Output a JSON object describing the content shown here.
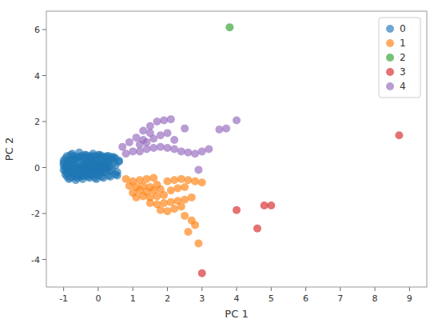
{
  "chart_data": {
    "type": "scatter",
    "xlabel": "PC 1",
    "ylabel": "PC 2",
    "xlim": [
      -1.5,
      9.5
    ],
    "ylim": [
      -5.2,
      6.8
    ],
    "xticks": [
      -1,
      0,
      1,
      2,
      3,
      4,
      5,
      6,
      7,
      8,
      9
    ],
    "yticks": [
      -4,
      -2,
      0,
      2,
      4,
      6
    ],
    "grid": false,
    "legend": "upper right",
    "series": [
      {
        "name": "0",
        "color": "#1f77b4",
        "x": [
          -0.95,
          -0.9,
          -0.85,
          -0.8,
          -0.75,
          -0.7,
          -0.7,
          -0.65,
          -0.6,
          -0.6,
          -0.55,
          -0.5,
          -0.5,
          -0.45,
          -0.4,
          -0.4,
          -0.35,
          -0.35,
          -0.3,
          -0.3,
          -0.25,
          -0.25,
          -0.2,
          -0.2,
          -0.15,
          -0.15,
          -0.1,
          -0.1,
          -0.05,
          -0.05,
          0.0,
          0.0,
          0.0,
          0.05,
          0.05,
          0.1,
          0.1,
          0.15,
          0.15,
          0.2,
          0.2,
          0.25,
          0.25,
          0.3,
          0.3,
          -0.8,
          -0.7,
          -0.6,
          -0.5,
          -0.4,
          -0.3,
          -0.2,
          -0.1,
          0.0,
          0.1,
          -0.85,
          -0.75,
          -0.65,
          -0.55,
          -0.45,
          -0.35,
          -0.25,
          -0.15,
          -0.05,
          0.05,
          -0.9,
          -0.8,
          -0.7,
          -0.6,
          -0.5,
          -0.4,
          -0.3,
          -0.2,
          -0.1,
          0.0,
          -0.9,
          -0.8,
          -0.7,
          -0.6,
          -0.5,
          -0.4,
          -0.3,
          -0.2,
          -0.1,
          0.0,
          0.1,
          0.2,
          0.3,
          0.4,
          0.5,
          -1.0,
          -1.0,
          -1.0,
          -0.95,
          -0.95,
          -0.85,
          -0.75,
          -0.65,
          -0.55,
          -0.45,
          -0.35,
          -0.25,
          -0.15,
          -0.05,
          0.05,
          0.15,
          0.25,
          0.35,
          0.45,
          0.55,
          0.6,
          0.5,
          0.4,
          0.3,
          0.2,
          0.15,
          0.05,
          -0.05,
          -0.15,
          -0.25,
          -0.35,
          -0.45,
          -0.55,
          -0.65,
          -0.75,
          -0.85,
          -0.95,
          -1.0,
          -0.9,
          -0.8,
          -0.7,
          -0.6,
          -0.5,
          -0.4,
          -0.3,
          -0.2,
          -0.1,
          0.0,
          0.1,
          0.2,
          0.3,
          0.4,
          0.5,
          0.6,
          0.55,
          0.45,
          0.35,
          0.25,
          0.15
        ],
        "values": [
          0.0,
          0.05,
          -0.05,
          0.1,
          0.0,
          -0.1,
          0.15,
          0.05,
          -0.1,
          0.1,
          0.0,
          -0.05,
          0.05,
          0.15,
          -0.05,
          0.1,
          -0.15,
          0.1,
          0.0,
          0.2,
          -0.05,
          0.1,
          -0.05,
          0.15,
          0.0,
          0.2,
          -0.1,
          0.1,
          0.0,
          0.15,
          -0.05,
          0.05,
          0.1,
          -0.05,
          0.1,
          0.0,
          0.15,
          -0.05,
          0.1,
          0.0,
          0.1,
          -0.05,
          0.1,
          0.0,
          0.15,
          -0.2,
          -0.25,
          -0.3,
          -0.25,
          -0.2,
          -0.15,
          -0.1,
          -0.15,
          -0.2,
          -0.15,
          0.3,
          0.35,
          0.4,
          0.45,
          0.4,
          0.35,
          0.3,
          0.25,
          0.3,
          0.35,
          -0.4,
          -0.45,
          -0.4,
          -0.45,
          -0.4,
          -0.35,
          -0.3,
          -0.35,
          -0.3,
          -0.35,
          0.5,
          0.55,
          0.5,
          0.45,
          0.5,
          0.55,
          0.5,
          0.45,
          0.5,
          0.55,
          0.5,
          0.45,
          0.5,
          0.45,
          0.4,
          0.1,
          -0.1,
          0.3,
          -0.3,
          0.4,
          -0.5,
          0.6,
          -0.55,
          0.65,
          -0.5,
          0.55,
          -0.45,
          0.6,
          -0.5,
          0.55,
          -0.45,
          0.5,
          -0.4,
          0.45,
          -0.35,
          0.3,
          0.1,
          -0.1,
          0.25,
          -0.2,
          0.3,
          -0.25,
          0.35,
          -0.3,
          0.4,
          -0.35,
          0.3,
          -0.3,
          0.35,
          -0.2,
          0.25,
          -0.15,
          0.2,
          -0.25,
          0.3,
          -0.3,
          0.4,
          -0.35,
          0.45,
          -0.4,
          0.5,
          -0.45,
          0.45,
          -0.4,
          0.4,
          -0.35,
          0.35,
          -0.3,
          0.25,
          -0.2,
          0.2,
          -0.15,
          0.25,
          -0.2
        ]
      },
      {
        "name": "1",
        "color": "#ff7f0e",
        "x": [
          0.8,
          1.0,
          1.2,
          1.4,
          1.6,
          0.9,
          1.1,
          1.3,
          1.5,
          1.7,
          1.0,
          1.2,
          1.4,
          1.6,
          1.8,
          1.1,
          1.3,
          1.5,
          1.7,
          1.9,
          2.1,
          2.3,
          2.5,
          2.0,
          2.2,
          2.4,
          2.6,
          2.8,
          3.0,
          1.5,
          1.7,
          1.9,
          2.1,
          2.3,
          2.5,
          2.7,
          1.8,
          2.0,
          2.2,
          2.4,
          2.5,
          2.7,
          2.8,
          2.6,
          2.9
        ],
        "values": [
          -0.5,
          -0.6,
          -0.55,
          -0.5,
          -0.45,
          -0.8,
          -0.85,
          -0.8,
          -0.85,
          -0.75,
          -1.1,
          -1.0,
          -1.05,
          -1.0,
          -0.95,
          -1.3,
          -1.25,
          -1.3,
          -1.25,
          -1.2,
          -1.0,
          -0.9,
          -0.85,
          -0.6,
          -0.55,
          -0.5,
          -0.55,
          -0.6,
          -0.65,
          -1.55,
          -1.6,
          -1.55,
          -1.5,
          -1.45,
          -1.4,
          -1.3,
          -1.85,
          -1.9,
          -1.8,
          -1.7,
          -2.1,
          -2.3,
          -2.5,
          -2.8,
          -3.3
        ]
      },
      {
        "name": "2",
        "color": "#2ca02c",
        "x": [
          3.8
        ],
        "values": [
          6.1
        ]
      },
      {
        "name": "3",
        "color": "#d62728",
        "x": [
          3.0,
          4.0,
          4.6,
          4.8,
          5.0,
          8.7
        ],
        "values": [
          -4.6,
          -1.85,
          -2.65,
          -1.65,
          -1.65,
          1.4
        ]
      },
      {
        "name": "4",
        "color": "#9467bd",
        "x": [
          0.7,
          0.9,
          1.1,
          1.3,
          1.5,
          1.7,
          1.9,
          2.1,
          1.2,
          1.4,
          1.6,
          1.8,
          2.0,
          0.8,
          1.0,
          1.2,
          1.4,
          1.6,
          1.8,
          2.0,
          2.2,
          2.4,
          2.6,
          2.8,
          3.0,
          3.2,
          3.5,
          4.0,
          2.9,
          2.5,
          3.7,
          1.5,
          1.3,
          2.2
        ],
        "values": [
          0.9,
          1.1,
          1.3,
          1.6,
          1.8,
          2.0,
          2.05,
          2.1,
          1.0,
          1.1,
          1.25,
          1.4,
          1.5,
          0.6,
          0.7,
          0.7,
          0.8,
          0.85,
          0.9,
          0.85,
          0.8,
          0.7,
          0.65,
          0.6,
          0.7,
          0.8,
          1.65,
          2.05,
          -0.1,
          1.7,
          1.7,
          1.5,
          1.2,
          1.2
        ]
      }
    ]
  }
}
